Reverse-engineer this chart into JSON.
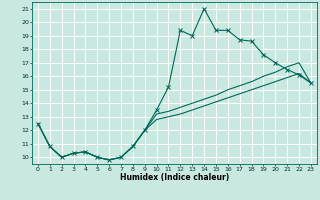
{
  "xlabel": "Humidex (Indice chaleur)",
  "xlim": [
    -0.5,
    23.5
  ],
  "ylim": [
    9.5,
    21.5
  ],
  "xticks": [
    0,
    1,
    2,
    3,
    4,
    5,
    6,
    7,
    8,
    9,
    10,
    11,
    12,
    13,
    14,
    15,
    16,
    17,
    18,
    19,
    20,
    21,
    22,
    23
  ],
  "yticks": [
    10,
    11,
    12,
    13,
    14,
    15,
    16,
    17,
    18,
    19,
    20,
    21
  ],
  "bg_color": "#c8e8e0",
  "grid_color": "#b0d8cc",
  "line_color": "#006858",
  "line1_x": [
    0,
    1,
    2,
    3,
    4,
    5,
    6,
    7,
    8,
    9,
    10,
    11,
    12,
    13,
    14,
    15,
    16,
    17,
    18,
    19,
    20,
    21,
    22,
    23
  ],
  "line1_y": [
    12.5,
    10.8,
    10.0,
    10.3,
    10.4,
    10.0,
    9.8,
    10.0,
    10.8,
    12.0,
    13.5,
    15.2,
    19.4,
    19.0,
    21.0,
    19.4,
    19.4,
    18.7,
    18.6,
    17.6,
    17.0,
    16.5,
    16.1,
    15.5
  ],
  "line2_x": [
    0,
    1,
    2,
    3,
    4,
    5,
    6,
    7,
    8,
    9,
    10,
    11,
    12,
    13,
    14,
    15,
    16,
    17,
    18,
    19,
    20,
    21,
    22,
    23
  ],
  "line2_y": [
    12.5,
    10.8,
    10.0,
    10.3,
    10.4,
    10.0,
    9.8,
    10.0,
    10.8,
    12.0,
    13.2,
    13.4,
    13.7,
    14.0,
    14.3,
    14.6,
    15.0,
    15.3,
    15.6,
    16.0,
    16.3,
    16.7,
    17.0,
    15.5
  ],
  "line3_x": [
    0,
    1,
    2,
    3,
    4,
    5,
    6,
    7,
    8,
    9,
    10,
    11,
    12,
    13,
    14,
    15,
    16,
    17,
    18,
    19,
    20,
    21,
    22,
    23
  ],
  "line3_y": [
    12.5,
    10.8,
    10.0,
    10.3,
    10.4,
    10.0,
    9.8,
    10.0,
    10.8,
    12.0,
    12.8,
    13.0,
    13.2,
    13.5,
    13.8,
    14.1,
    14.4,
    14.7,
    15.0,
    15.3,
    15.6,
    15.9,
    16.2,
    15.5
  ]
}
